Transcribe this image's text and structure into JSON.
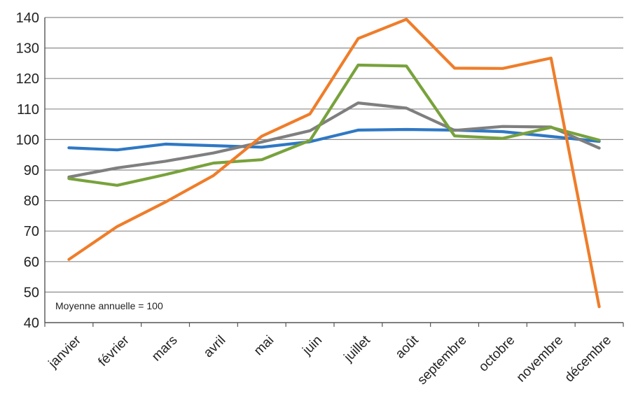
{
  "chart_data": {
    "type": "line",
    "title": "",
    "xlabel": "",
    "ylabel": "",
    "categories": [
      "janvier",
      "février",
      "mars",
      "avril",
      "mai",
      "juin",
      "juillet",
      "août",
      "septembre",
      "octobre",
      "novembre",
      "décembre"
    ],
    "y_ticks": [
      40,
      50,
      60,
      70,
      80,
      90,
      100,
      110,
      120,
      130,
      140
    ],
    "ylim": [
      40,
      140
    ],
    "grid": true,
    "legend": "none",
    "annotation": "Moyenne annuelle = 100",
    "series": [
      {
        "color": "#2f78c4",
        "values": [
          97.3,
          96.6,
          98.5,
          98.0,
          97.5,
          99.3,
          103.1,
          103.3,
          103.1,
          102.6,
          101.0,
          99.4
        ]
      },
      {
        "color": "#7f7f7f",
        "values": [
          87.7,
          90.7,
          92.9,
          95.6,
          99.2,
          102.9,
          112.0,
          110.3,
          103.0,
          104.3,
          104.1,
          97.2
        ]
      },
      {
        "color": "#78a23c",
        "values": [
          87.2,
          85.0,
          88.5,
          92.3,
          93.4,
          99.7,
          124.4,
          124.1,
          101.2,
          100.4,
          104.0,
          99.8
        ]
      },
      {
        "color": "#ef7d2a",
        "values": [
          60.7,
          71.5,
          79.5,
          88.2,
          101.1,
          108.4,
          133.1,
          139.4,
          123.4,
          123.3,
          126.7,
          45.2
        ]
      }
    ]
  }
}
